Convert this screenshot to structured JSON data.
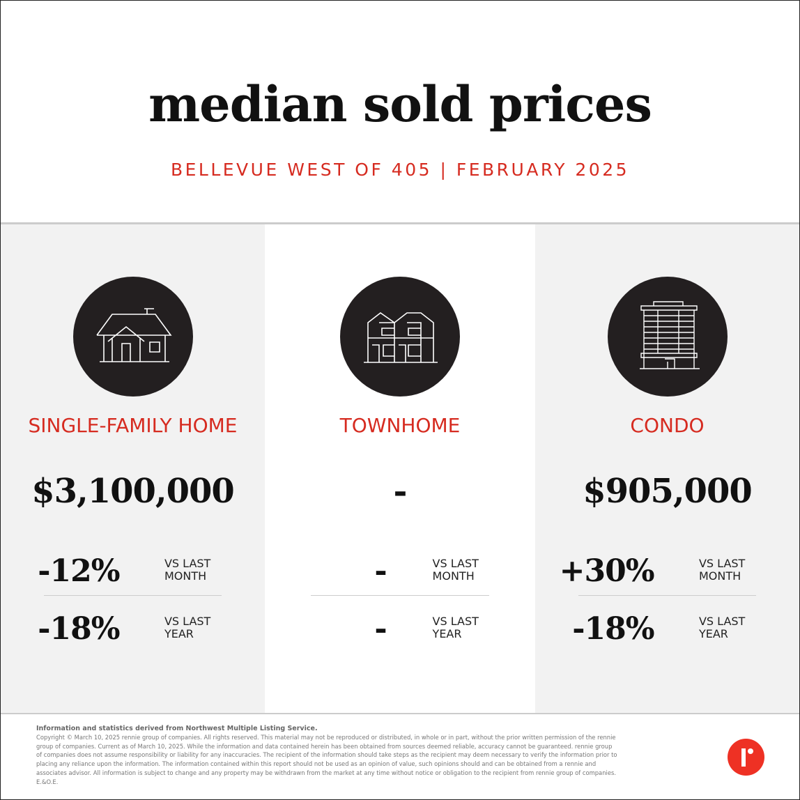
{
  "header": {
    "title": "median sold prices",
    "subtitle": "BELLEVUE WEST OF 405 | FEBRUARY 2025"
  },
  "columns": [
    {
      "type": "SINGLE-FAMILY HOME",
      "icon": "house-icon",
      "price": "$3,100,000",
      "month_change": "-12%",
      "month_label": "VS LAST MONTH",
      "year_change": "-18%",
      "year_label": "VS LAST YEAR"
    },
    {
      "type": "TOWNHOME",
      "icon": "townhouse-icon",
      "price": "-",
      "month_change": "-",
      "month_label": "VS LAST MONTH",
      "year_change": "-",
      "year_label": "VS LAST YEAR"
    },
    {
      "type": "CONDO",
      "icon": "condo-building-icon",
      "price": "$905,000",
      "month_change": "+30%",
      "month_label": "VS LAST MONTH",
      "year_change": "-18%",
      "year_label": "VS LAST YEAR"
    }
  ],
  "footer": {
    "heading": "Information and statistics derived from Northwest Multiple Listing Service.",
    "lines": [
      "Copyright © March 10, 2025 rennie group of companies. All rights reserved. This material may not be reproduced or distributed, in whole or in part, without the prior written permission of the rennie",
      "group of companies. Current as of March 10, 2025. While the information and data contained herein has been obtained from sources deemed reliable, accuracy cannot be guaranteed. rennie group",
      "of companies does not assume responsibility or liability for any inaccuracies. The recipient of the information should take steps as the recipient may deem necessary to verify the information prior to",
      "placing any reliance upon the information. The information contained within this report should not be used as an opinion of value, such opinions should and can be obtained from a rennie and",
      "associates advisor. All information is subject to change and any property may be withdrawn from the market at any time without notice or obligation to the recipient from rennie group of companies.",
      "E.&O.E."
    ]
  },
  "colors": {
    "accent": "#d62b20",
    "logo": "#ee3124",
    "circle": "#231f20"
  }
}
